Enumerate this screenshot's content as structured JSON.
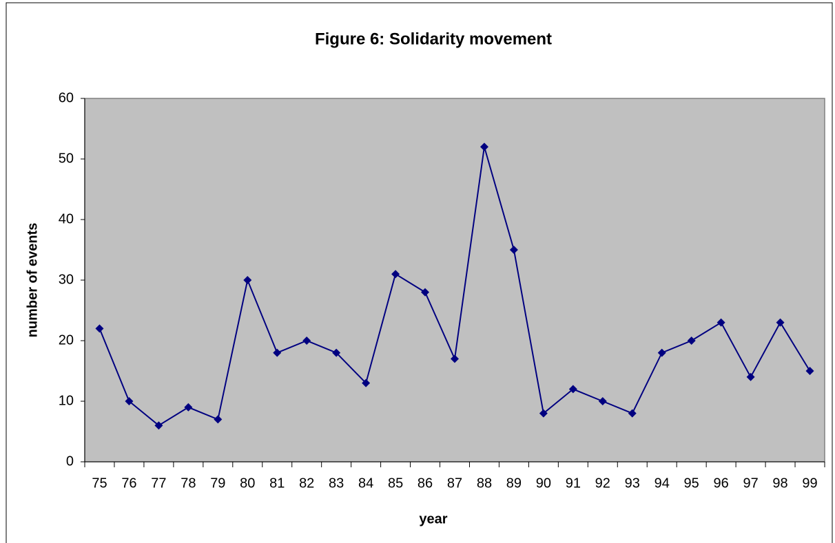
{
  "chart_data": {
    "type": "line",
    "title": "Figure 6: Solidarity movement",
    "xlabel": "year",
    "ylabel": "number of events",
    "categories": [
      "75",
      "76",
      "77",
      "78",
      "79",
      "80",
      "81",
      "82",
      "83",
      "84",
      "85",
      "86",
      "87",
      "88",
      "89",
      "90",
      "91",
      "92",
      "93",
      "94",
      "95",
      "96",
      "97",
      "98",
      "99"
    ],
    "series": [
      {
        "name": "number of events",
        "color": "#000080",
        "values": [
          22,
          10,
          6,
          9,
          7,
          30,
          18,
          20,
          18,
          13,
          31,
          28,
          17,
          52,
          35,
          8,
          12,
          10,
          8,
          18,
          20,
          23,
          14,
          23,
          15
        ]
      }
    ],
    "ylim": [
      0,
      60
    ],
    "yticks": [
      0,
      10,
      20,
      30,
      40,
      50,
      60
    ],
    "grid": false,
    "plot_background": "#c0c0c0"
  }
}
